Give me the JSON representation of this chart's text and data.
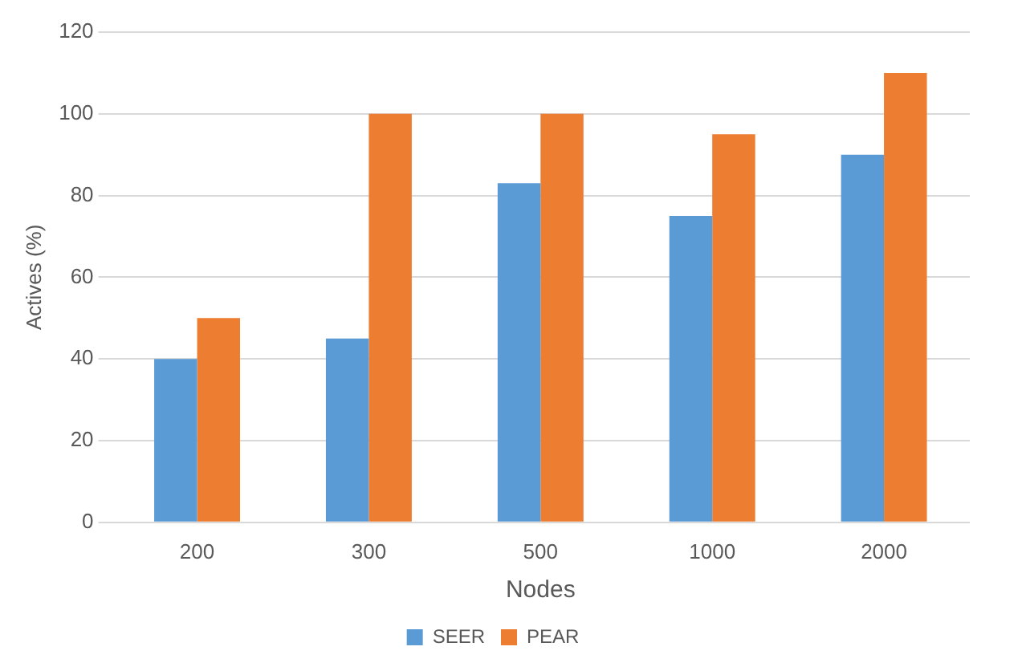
{
  "chart_data": {
    "type": "bar",
    "xlabel": "Nodes",
    "ylabel": "Actives (%)",
    "categories": [
      "200",
      "300",
      "500",
      "1000",
      "2000"
    ],
    "series": [
      {
        "name": "SEER",
        "color": "#5b9bd5",
        "values": [
          40,
          45,
          83,
          75,
          90
        ]
      },
      {
        "name": "PEAR",
        "color": "#ed7d31",
        "values": [
          50,
          100,
          100,
          95,
          110
        ]
      }
    ],
    "ylim": [
      0,
      120
    ],
    "yticks": [
      0,
      20,
      40,
      60,
      80,
      100,
      120
    ],
    "grid": "y",
    "legend": "bottom"
  }
}
